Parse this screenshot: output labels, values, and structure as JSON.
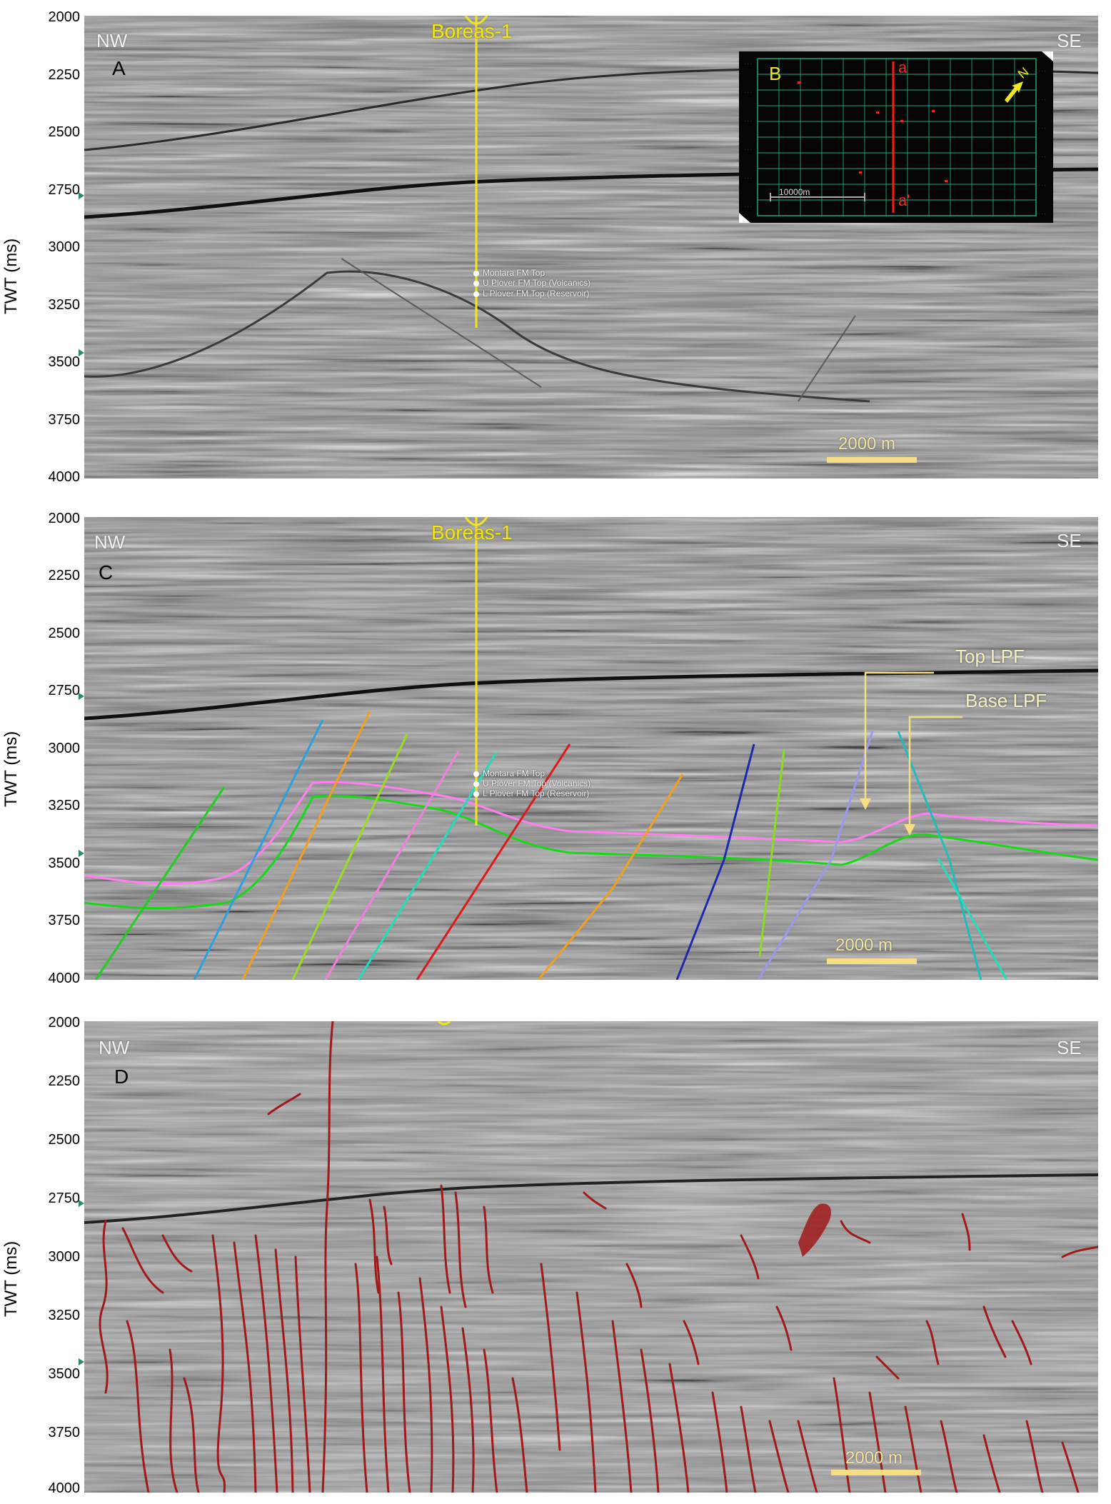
{
  "axis": {
    "title": "TWT (ms)",
    "ticks": [
      "2000",
      "2250",
      "2500",
      "2750",
      "3000",
      "3250",
      "3500",
      "3750",
      "4000"
    ]
  },
  "panels": [
    {
      "id": "A",
      "label": "A",
      "nw": "NW",
      "se": "SE",
      "well_name": "Boreas-1",
      "markers": [
        "Montara FM Top",
        "U Plover FM Top (Volcanics)",
        "L Plover FM Top (Reservoir)"
      ],
      "scale": "2000 m"
    },
    {
      "id": "C",
      "label": "C",
      "nw": "NW",
      "se": "SE",
      "well_name": "Boreas-1",
      "markers": [
        "Montara FM Top",
        "U Plover FM Top (Volcanics)",
        "L Plover FM Top (Reservoir)"
      ],
      "scale": "2000 m",
      "horizon_labels": [
        "Top LPF",
        "Base LPF"
      ],
      "colors": {
        "top_lpf": "#ff7ff0",
        "base_lpf": "#18d818",
        "faults": [
          "#22cc22",
          "#2aa0e0",
          "#f0a020",
          "#99dd22",
          "#f080e0",
          "#22ddbb",
          "#dd1a1a",
          "#f0a020",
          "#1a2aaa",
          "#88dd22",
          "#9999ee",
          "#22bbbb"
        ]
      }
    },
    {
      "id": "D",
      "label": "D",
      "nw": "NW",
      "se": "SE",
      "scale": "2000 m",
      "colors": {
        "fault_attribute": "#a01a1a"
      }
    }
  ],
  "inset": {
    "label": "B",
    "section_start": "a",
    "section_end": "a'",
    "north": "N",
    "scale": "10000m",
    "colors": {
      "grid": "#1aa87a",
      "section_line": "#ff1a1a",
      "background": "#050505"
    }
  }
}
